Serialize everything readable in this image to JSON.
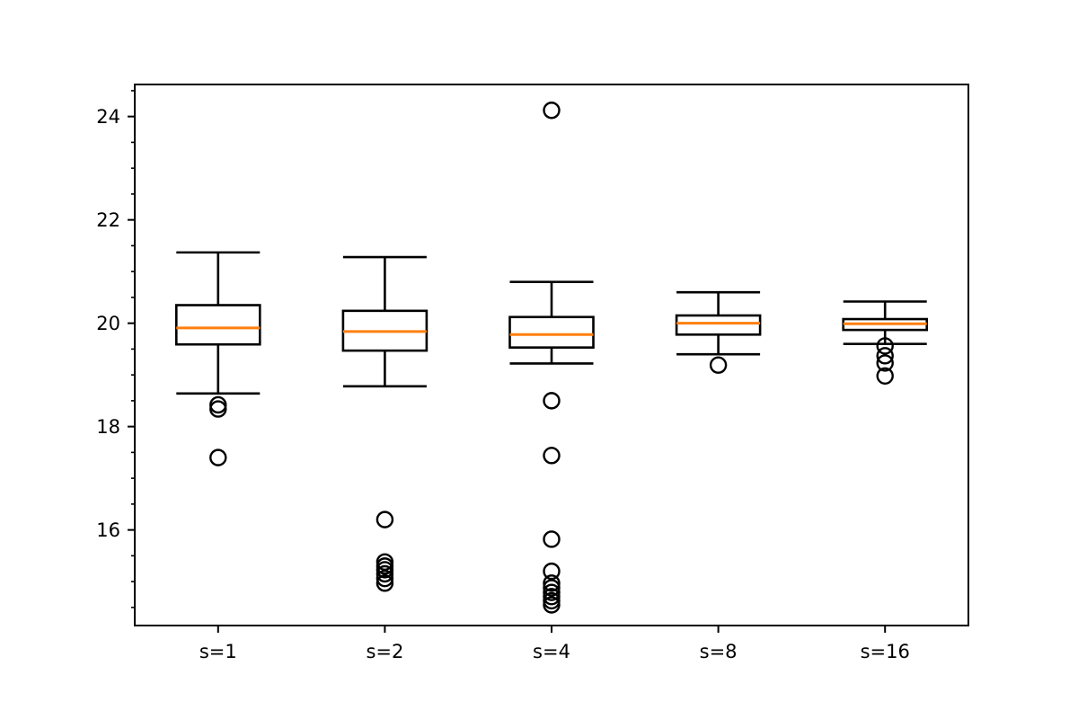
{
  "figure": {
    "background": "#ffffff",
    "title": ""
  },
  "chart_data": {
    "type": "boxplot",
    "title": "",
    "xlabel": "",
    "ylabel": "",
    "grid": false,
    "legend": "none",
    "categories": [
      "s=1",
      "s=2",
      "s=4",
      "s=8",
      "s=16"
    ],
    "series": [
      {
        "name": "s=1",
        "whislo": 18.64,
        "q1": 19.59,
        "med": 19.91,
        "q3": 20.35,
        "whishi": 21.37,
        "outliers": [
          18.42,
          18.34,
          17.4
        ]
      },
      {
        "name": "s=2",
        "whislo": 18.78,
        "q1": 19.47,
        "med": 19.84,
        "q3": 20.24,
        "whishi": 21.28,
        "outliers": [
          16.2,
          15.38,
          15.3,
          15.23,
          15.15,
          15.06,
          14.97
        ]
      },
      {
        "name": "s=4",
        "whislo": 19.22,
        "q1": 19.53,
        "med": 19.78,
        "q3": 20.12,
        "whishi": 20.8,
        "outliers": [
          24.12,
          18.5,
          17.44,
          15.82,
          15.2,
          14.97,
          14.88,
          14.79,
          14.71,
          14.63,
          14.55
        ]
      },
      {
        "name": "s=8",
        "whislo": 19.4,
        "q1": 19.78,
        "med": 20.0,
        "q3": 20.15,
        "whishi": 20.6,
        "outliers": [
          19.19
        ]
      },
      {
        "name": "s=16",
        "whislo": 19.6,
        "q1": 19.87,
        "med": 19.99,
        "q3": 20.08,
        "whishi": 20.42,
        "outliers": [
          19.56,
          19.37,
          19.23,
          18.98
        ]
      }
    ],
    "ylim": [
      14.15,
      24.62
    ],
    "y_major_ticks": [
      16,
      18,
      20,
      22,
      24
    ],
    "y_minor_tick_step": 0.5,
    "x_tick_labels": [
      "s=1",
      "s=2",
      "s=4",
      "s=8",
      "s=16"
    ],
    "colors": {
      "median": "#ff7f0e",
      "line": "#000000",
      "background": "#ffffff"
    }
  }
}
